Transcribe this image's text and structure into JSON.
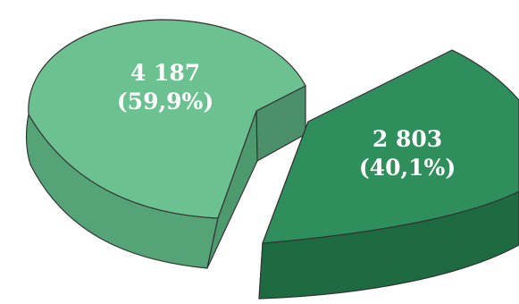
{
  "chart_data": {
    "type": "pie",
    "style": "3d-exploded",
    "title": "",
    "legend": "none",
    "slices": [
      {
        "value": 4187,
        "percent": 59.9,
        "label_value": "4 187",
        "label_percent": "(59,9%)",
        "color": "#6cc191",
        "side_color": "#54a477",
        "inner_color": "#4c8f6b"
      },
      {
        "value": 2803,
        "percent": 40.1,
        "label_value": "2 803",
        "label_percent": "(40,1%)",
        "color": "#2e8f5c",
        "side_color": "#1e6b41",
        "inner_color": "#1a5a37"
      }
    ]
  }
}
